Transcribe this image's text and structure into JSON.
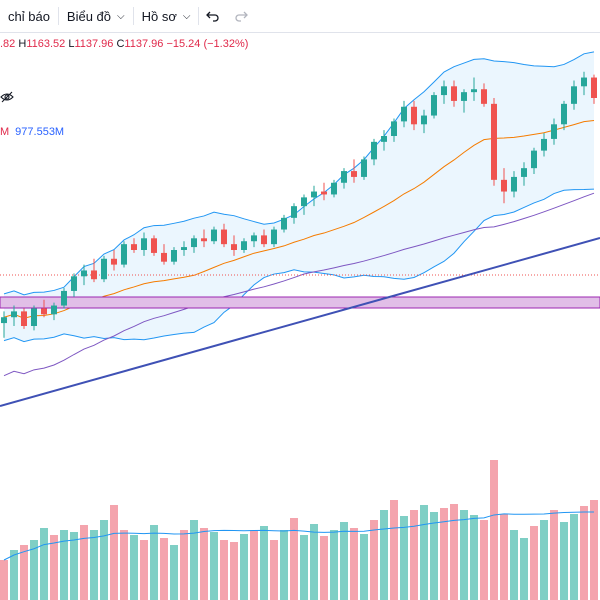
{
  "toolbar": {
    "indicators_label": "chỉ báo",
    "chart_label": "Biểu đồ",
    "profile_label": "Hồ sơ",
    "undo_icon": "undo-icon",
    "redo_icon": "redo-icon"
  },
  "legend": {
    "open_partial": ".82",
    "high_label": "H",
    "high_value": "1163.52",
    "low_label": "L",
    "low_value": "1137.96",
    "close_label": "C",
    "close_value": "1137.96",
    "change": "−15.24 (−1.32%)",
    "eye_icon": "eye-hidden-icon"
  },
  "volume_legend": {
    "label_partial": "M",
    "ma_value": "977.553M"
  },
  "colors": {
    "up": "#26a69a",
    "down": "#ef5350",
    "up_volume": "#7fcfc5",
    "down_volume": "#f4a4ad",
    "bands": "#2196f3",
    "band_fill": "#e3f2fd",
    "ma_orange": "#f57c00",
    "ma_purple": "#7e57c2",
    "trendline": "#3f51b5",
    "zone_fill": "#e1bee7",
    "zone_border": "#9c27b0",
    "dotted": "#ef5350"
  },
  "chart_data": {
    "type": "candlestick",
    "price_range": [
      920,
      1180
    ],
    "candles": [
      [
        1000,
        1008,
        990,
        1004
      ],
      [
        1004,
        1012,
        998,
        1008
      ],
      [
        1008,
        1010,
        996,
        998
      ],
      [
        998,
        1012,
        995,
        1010
      ],
      [
        1010,
        1016,
        1004,
        1006
      ],
      [
        1006,
        1014,
        1002,
        1012
      ],
      [
        1012,
        1024,
        1010,
        1022
      ],
      [
        1022,
        1034,
        1018,
        1032
      ],
      [
        1032,
        1040,
        1026,
        1036
      ],
      [
        1036,
        1044,
        1028,
        1030
      ],
      [
        1030,
        1046,
        1028,
        1044
      ],
      [
        1044,
        1050,
        1036,
        1040
      ],
      [
        1040,
        1056,
        1038,
        1054
      ],
      [
        1054,
        1058,
        1048,
        1050
      ],
      [
        1050,
        1062,
        1046,
        1058
      ],
      [
        1058,
        1060,
        1046,
        1048
      ],
      [
        1048,
        1054,
        1040,
        1042
      ],
      [
        1042,
        1052,
        1040,
        1050
      ],
      [
        1050,
        1056,
        1046,
        1052
      ],
      [
        1052,
        1060,
        1048,
        1058
      ],
      [
        1058,
        1064,
        1052,
        1056
      ],
      [
        1056,
        1066,
        1054,
        1064
      ],
      [
        1064,
        1068,
        1052,
        1054
      ],
      [
        1054,
        1060,
        1046,
        1050
      ],
      [
        1050,
        1058,
        1048,
        1056
      ],
      [
        1056,
        1062,
        1052,
        1060
      ],
      [
        1060,
        1064,
        1052,
        1054
      ],
      [
        1054,
        1066,
        1052,
        1064
      ],
      [
        1064,
        1074,
        1062,
        1072
      ],
      [
        1072,
        1082,
        1068,
        1080
      ],
      [
        1080,
        1088,
        1074,
        1086
      ],
      [
        1086,
        1094,
        1080,
        1090
      ],
      [
        1090,
        1096,
        1084,
        1088
      ],
      [
        1088,
        1098,
        1086,
        1096
      ],
      [
        1096,
        1106,
        1092,
        1104
      ],
      [
        1104,
        1112,
        1096,
        1100
      ],
      [
        1100,
        1114,
        1098,
        1112
      ],
      [
        1112,
        1126,
        1108,
        1124
      ],
      [
        1124,
        1132,
        1118,
        1128
      ],
      [
        1128,
        1140,
        1124,
        1138
      ],
      [
        1138,
        1152,
        1134,
        1148
      ],
      [
        1148,
        1152,
        1132,
        1136
      ],
      [
        1136,
        1146,
        1130,
        1142
      ],
      [
        1142,
        1158,
        1140,
        1156
      ],
      [
        1156,
        1166,
        1150,
        1162
      ],
      [
        1162,
        1166,
        1148,
        1152
      ],
      [
        1152,
        1160,
        1144,
        1158
      ],
      [
        1158,
        1168,
        1152,
        1160
      ],
      [
        1160,
        1164,
        1148,
        1150
      ],
      [
        1150,
        1154,
        1094,
        1098
      ],
      [
        1098,
        1106,
        1082,
        1090
      ],
      [
        1090,
        1104,
        1086,
        1100
      ],
      [
        1100,
        1110,
        1094,
        1106
      ],
      [
        1106,
        1120,
        1102,
        1118
      ],
      [
        1118,
        1130,
        1114,
        1126
      ],
      [
        1126,
        1140,
        1122,
        1136
      ],
      [
        1136,
        1152,
        1132,
        1150
      ],
      [
        1150,
        1166,
        1146,
        1162
      ],
      [
        1162,
        1172,
        1156,
        1168
      ],
      [
        1168,
        1170,
        1150,
        1154
      ]
    ],
    "volumes": [
      [
        40,
        "d"
      ],
      [
        50,
        "u"
      ],
      [
        55,
        "d"
      ],
      [
        60,
        "u"
      ],
      [
        72,
        "u"
      ],
      [
        65,
        "d"
      ],
      [
        70,
        "u"
      ],
      [
        68,
        "u"
      ],
      [
        75,
        "d"
      ],
      [
        70,
        "u"
      ],
      [
        80,
        "u"
      ],
      [
        95,
        "d"
      ],
      [
        70,
        "d"
      ],
      [
        65,
        "u"
      ],
      [
        60,
        "d"
      ],
      [
        75,
        "u"
      ],
      [
        62,
        "d"
      ],
      [
        55,
        "u"
      ],
      [
        70,
        "d"
      ],
      [
        80,
        "u"
      ],
      [
        72,
        "d"
      ],
      [
        68,
        "u"
      ],
      [
        60,
        "d"
      ],
      [
        58,
        "d"
      ],
      [
        66,
        "u"
      ],
      [
        70,
        "d"
      ],
      [
        74,
        "u"
      ],
      [
        60,
        "d"
      ],
      [
        70,
        "u"
      ],
      [
        82,
        "d"
      ],
      [
        65,
        "u"
      ],
      [
        76,
        "u"
      ],
      [
        64,
        "d"
      ],
      [
        70,
        "u"
      ],
      [
        78,
        "u"
      ],
      [
        72,
        "d"
      ],
      [
        66,
        "u"
      ],
      [
        80,
        "d"
      ],
      [
        90,
        "u"
      ],
      [
        100,
        "d"
      ],
      [
        84,
        "u"
      ],
      [
        90,
        "d"
      ],
      [
        95,
        "u"
      ],
      [
        88,
        "u"
      ],
      [
        92,
        "d"
      ],
      [
        96,
        "d"
      ],
      [
        90,
        "u"
      ],
      [
        85,
        "u"
      ],
      [
        80,
        "d"
      ],
      [
        140,
        "d"
      ],
      [
        86,
        "d"
      ],
      [
        70,
        "u"
      ],
      [
        62,
        "u"
      ],
      [
        74,
        "d"
      ],
      [
        80,
        "u"
      ],
      [
        90,
        "d"
      ],
      [
        78,
        "u"
      ],
      [
        86,
        "u"
      ],
      [
        94,
        "d"
      ],
      [
        100,
        "d"
      ]
    ]
  }
}
